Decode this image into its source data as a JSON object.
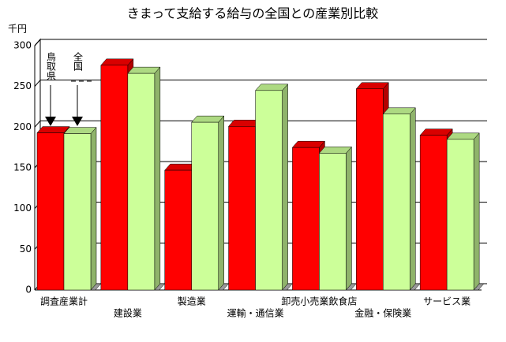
{
  "chart_data": {
    "type": "bar3d",
    "title": "きまって支給する給与の全国との産業別比較",
    "y_unit": "千円",
    "categories": [
      "調査産業計",
      "建設業",
      "製造業",
      "運輸・通信業",
      "卸売小売業飲食店",
      "金融・保険業",
      "サービス業"
    ],
    "series": [
      {
        "name": "鳥取県",
        "color": "#ff0000",
        "values": [
          193,
          276,
          147,
          201,
          175,
          247,
          190
        ]
      },
      {
        "name": "全国",
        "color": "#ccff99",
        "values": [
          192,
          266,
          206,
          245,
          168,
          216,
          185
        ]
      }
    ],
    "ylim": [
      0,
      300
    ],
    "yticks": [
      0,
      50,
      100,
      150,
      200,
      250,
      300
    ],
    "grid": true
  }
}
